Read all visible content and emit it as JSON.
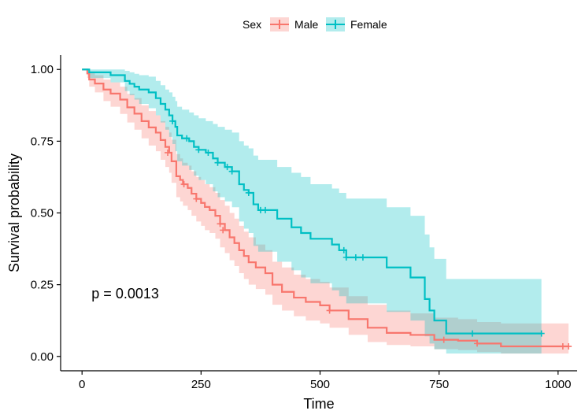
{
  "chart_data": {
    "type": "line",
    "xlabel": "Time",
    "ylabel": "Survival probability",
    "xlim": [
      -45,
      1040
    ],
    "ylim": [
      -0.05,
      1.05
    ],
    "x_ticks": [
      0,
      250,
      500,
      750,
      1000
    ],
    "x_tick_labels": [
      "0",
      "250",
      "500",
      "750",
      "1000"
    ],
    "y_ticks": [
      0.0,
      0.25,
      0.5,
      0.75,
      1.0
    ],
    "y_tick_labels": [
      "0.00",
      "0.25",
      "0.50",
      "0.75",
      "1.00"
    ],
    "grid": false,
    "legend": {
      "title": "Sex",
      "position": "top"
    },
    "annotation": {
      "text": "p = 0.0013",
      "x": 20,
      "y": 0.2
    },
    "series": [
      {
        "name": "Male",
        "color": "#F8766D",
        "steps": [
          [
            0,
            1.0
          ],
          [
            11,
            0.986
          ],
          [
            15,
            0.965
          ],
          [
            27,
            0.951
          ],
          [
            45,
            0.93
          ],
          [
            60,
            0.916
          ],
          [
            80,
            0.895
          ],
          [
            95,
            0.868
          ],
          [
            110,
            0.846
          ],
          [
            125,
            0.82
          ],
          [
            140,
            0.798
          ],
          [
            155,
            0.78
          ],
          [
            165,
            0.754
          ],
          [
            175,
            0.73
          ],
          [
            183,
            0.71
          ],
          [
            188,
            0.68
          ],
          [
            198,
            0.628
          ],
          [
            206,
            0.615
          ],
          [
            212,
            0.6
          ],
          [
            222,
            0.587
          ],
          [
            230,
            0.567
          ],
          [
            240,
            0.549
          ],
          [
            250,
            0.535
          ],
          [
            258,
            0.521
          ],
          [
            268,
            0.51
          ],
          [
            280,
            0.49
          ],
          [
            290,
            0.462
          ],
          [
            300,
            0.44
          ],
          [
            310,
            0.415
          ],
          [
            320,
            0.395
          ],
          [
            330,
            0.37
          ],
          [
            340,
            0.35
          ],
          [
            350,
            0.328
          ],
          [
            365,
            0.31
          ],
          [
            385,
            0.29
          ],
          [
            400,
            0.25
          ],
          [
            420,
            0.225
          ],
          [
            445,
            0.205
          ],
          [
            470,
            0.19
          ],
          [
            500,
            0.178
          ],
          [
            520,
            0.16
          ],
          [
            560,
            0.13
          ],
          [
            600,
            0.1
          ],
          [
            640,
            0.082
          ],
          [
            690,
            0.075
          ],
          [
            740,
            0.058
          ],
          [
            790,
            0.055
          ],
          [
            830,
            0.045
          ],
          [
            880,
            0.035
          ],
          [
            1022,
            0.035
          ]
        ],
        "lower": [
          [
            0,
            1.0
          ],
          [
            11,
            0.97
          ],
          [
            15,
            0.94
          ],
          [
            27,
            0.92
          ],
          [
            45,
            0.89
          ],
          [
            60,
            0.87
          ],
          [
            80,
            0.845
          ],
          [
            95,
            0.815
          ],
          [
            110,
            0.79
          ],
          [
            125,
            0.76
          ],
          [
            140,
            0.735
          ],
          [
            155,
            0.715
          ],
          [
            165,
            0.685
          ],
          [
            175,
            0.66
          ],
          [
            183,
            0.64
          ],
          [
            188,
            0.605
          ],
          [
            198,
            0.555
          ],
          [
            206,
            0.54
          ],
          [
            212,
            0.525
          ],
          [
            222,
            0.51
          ],
          [
            230,
            0.49
          ],
          [
            240,
            0.47
          ],
          [
            250,
            0.455
          ],
          [
            258,
            0.44
          ],
          [
            268,
            0.43
          ],
          [
            280,
            0.41
          ],
          [
            290,
            0.38
          ],
          [
            300,
            0.36
          ],
          [
            310,
            0.335
          ],
          [
            320,
            0.315
          ],
          [
            330,
            0.29
          ],
          [
            340,
            0.27
          ],
          [
            350,
            0.25
          ],
          [
            365,
            0.235
          ],
          [
            385,
            0.215
          ],
          [
            400,
            0.18
          ],
          [
            420,
            0.16
          ],
          [
            445,
            0.14
          ],
          [
            470,
            0.125
          ],
          [
            500,
            0.115
          ],
          [
            520,
            0.1
          ],
          [
            560,
            0.075
          ],
          [
            600,
            0.05
          ],
          [
            640,
            0.04
          ],
          [
            690,
            0.035
          ],
          [
            740,
            0.025
          ],
          [
            790,
            0.022
          ],
          [
            830,
            0.015
          ],
          [
            880,
            0.01
          ],
          [
            1022,
            0.01
          ]
        ],
        "upper": [
          [
            0,
            1.0
          ],
          [
            11,
            1.0
          ],
          [
            15,
            0.99
          ],
          [
            27,
            0.98
          ],
          [
            45,
            0.965
          ],
          [
            60,
            0.955
          ],
          [
            80,
            0.94
          ],
          [
            95,
            0.915
          ],
          [
            110,
            0.9
          ],
          [
            125,
            0.875
          ],
          [
            140,
            0.855
          ],
          [
            155,
            0.84
          ],
          [
            165,
            0.82
          ],
          [
            175,
            0.8
          ],
          [
            183,
            0.78
          ],
          [
            188,
            0.755
          ],
          [
            198,
            0.705
          ],
          [
            206,
            0.69
          ],
          [
            212,
            0.675
          ],
          [
            222,
            0.665
          ],
          [
            230,
            0.645
          ],
          [
            240,
            0.625
          ],
          [
            250,
            0.615
          ],
          [
            258,
            0.6
          ],
          [
            268,
            0.59
          ],
          [
            280,
            0.57
          ],
          [
            290,
            0.545
          ],
          [
            300,
            0.525
          ],
          [
            310,
            0.5
          ],
          [
            320,
            0.48
          ],
          [
            330,
            0.455
          ],
          [
            340,
            0.435
          ],
          [
            350,
            0.415
          ],
          [
            365,
            0.39
          ],
          [
            385,
            0.37
          ],
          [
            400,
            0.33
          ],
          [
            420,
            0.31
          ],
          [
            445,
            0.285
          ],
          [
            470,
            0.27
          ],
          [
            500,
            0.26
          ],
          [
            520,
            0.24
          ],
          [
            560,
            0.21
          ],
          [
            600,
            0.18
          ],
          [
            640,
            0.16
          ],
          [
            690,
            0.15
          ],
          [
            740,
            0.135
          ],
          [
            790,
            0.13
          ],
          [
            830,
            0.12
          ],
          [
            880,
            0.115
          ],
          [
            1022,
            0.115
          ]
        ],
        "censored": [
          [
            180,
            0.71
          ],
          [
            214,
            0.6
          ],
          [
            240,
            0.549
          ],
          [
            290,
            0.462
          ],
          [
            296,
            0.44
          ],
          [
            520,
            0.16
          ],
          [
            760,
            0.058
          ],
          [
            830,
            0.045
          ],
          [
            1010,
            0.035
          ],
          [
            1022,
            0.035
          ]
        ]
      },
      {
        "name": "Female",
        "color": "#00BFC4",
        "steps": [
          [
            0,
            1.0
          ],
          [
            15,
            0.99
          ],
          [
            60,
            0.98
          ],
          [
            90,
            0.96
          ],
          [
            100,
            0.95
          ],
          [
            110,
            0.94
          ],
          [
            120,
            0.93
          ],
          [
            140,
            0.92
          ],
          [
            155,
            0.9
          ],
          [
            165,
            0.88
          ],
          [
            175,
            0.86
          ],
          [
            183,
            0.84
          ],
          [
            190,
            0.82
          ],
          [
            196,
            0.8
          ],
          [
            200,
            0.77
          ],
          [
            210,
            0.76
          ],
          [
            225,
            0.75
          ],
          [
            235,
            0.73
          ],
          [
            245,
            0.72
          ],
          [
            260,
            0.71
          ],
          [
            275,
            0.69
          ],
          [
            285,
            0.675
          ],
          [
            300,
            0.66
          ],
          [
            315,
            0.645
          ],
          [
            330,
            0.6
          ],
          [
            340,
            0.58
          ],
          [
            350,
            0.57
          ],
          [
            360,
            0.53
          ],
          [
            370,
            0.51
          ],
          [
            410,
            0.48
          ],
          [
            440,
            0.45
          ],
          [
            460,
            0.43
          ],
          [
            480,
            0.41
          ],
          [
            525,
            0.39
          ],
          [
            540,
            0.37
          ],
          [
            555,
            0.345
          ],
          [
            640,
            0.31
          ],
          [
            690,
            0.275
          ],
          [
            720,
            0.2
          ],
          [
            730,
            0.16
          ],
          [
            740,
            0.125
          ],
          [
            765,
            0.08
          ],
          [
            965,
            0.08
          ]
        ],
        "lower": [
          [
            0,
            1.0
          ],
          [
            15,
            0.97
          ],
          [
            60,
            0.955
          ],
          [
            90,
            0.925
          ],
          [
            100,
            0.91
          ],
          [
            110,
            0.895
          ],
          [
            120,
            0.88
          ],
          [
            140,
            0.865
          ],
          [
            155,
            0.84
          ],
          [
            165,
            0.815
          ],
          [
            175,
            0.79
          ],
          [
            183,
            0.765
          ],
          [
            190,
            0.74
          ],
          [
            196,
            0.715
          ],
          [
            200,
            0.68
          ],
          [
            210,
            0.665
          ],
          [
            225,
            0.65
          ],
          [
            235,
            0.63
          ],
          [
            245,
            0.615
          ],
          [
            260,
            0.6
          ],
          [
            275,
            0.575
          ],
          [
            285,
            0.555
          ],
          [
            300,
            0.54
          ],
          [
            315,
            0.52
          ],
          [
            330,
            0.47
          ],
          [
            340,
            0.445
          ],
          [
            350,
            0.43
          ],
          [
            360,
            0.385
          ],
          [
            370,
            0.365
          ],
          [
            410,
            0.33
          ],
          [
            440,
            0.3
          ],
          [
            460,
            0.275
          ],
          [
            480,
            0.255
          ],
          [
            525,
            0.23
          ],
          [
            540,
            0.21
          ],
          [
            555,
            0.185
          ],
          [
            640,
            0.155
          ],
          [
            690,
            0.125
          ],
          [
            720,
            0.07
          ],
          [
            730,
            0.045
          ],
          [
            740,
            0.025
          ],
          [
            765,
            0.01
          ],
          [
            965,
            0.01
          ]
        ],
        "upper": [
          [
            0,
            1.0
          ],
          [
            15,
            1.0
          ],
          [
            60,
            1.0
          ],
          [
            90,
            0.995
          ],
          [
            100,
            0.99
          ],
          [
            110,
            0.985
          ],
          [
            120,
            0.98
          ],
          [
            140,
            0.975
          ],
          [
            155,
            0.96
          ],
          [
            165,
            0.945
          ],
          [
            175,
            0.93
          ],
          [
            183,
            0.92
          ],
          [
            190,
            0.905
          ],
          [
            196,
            0.89
          ],
          [
            200,
            0.87
          ],
          [
            210,
            0.86
          ],
          [
            225,
            0.85
          ],
          [
            235,
            0.84
          ],
          [
            245,
            0.83
          ],
          [
            260,
            0.82
          ],
          [
            275,
            0.81
          ],
          [
            285,
            0.8
          ],
          [
            300,
            0.79
          ],
          [
            315,
            0.78
          ],
          [
            330,
            0.75
          ],
          [
            340,
            0.735
          ],
          [
            350,
            0.725
          ],
          [
            360,
            0.7
          ],
          [
            370,
            0.685
          ],
          [
            410,
            0.66
          ],
          [
            440,
            0.64
          ],
          [
            460,
            0.625
          ],
          [
            480,
            0.6
          ],
          [
            525,
            0.585
          ],
          [
            540,
            0.57
          ],
          [
            555,
            0.55
          ],
          [
            640,
            0.52
          ],
          [
            690,
            0.49
          ],
          [
            720,
            0.425
          ],
          [
            730,
            0.38
          ],
          [
            740,
            0.34
          ],
          [
            765,
            0.27
          ],
          [
            965,
            0.27
          ]
        ],
        "censored": [
          [
            190,
            0.82
          ],
          [
            220,
            0.76
          ],
          [
            245,
            0.72
          ],
          [
            265,
            0.71
          ],
          [
            285,
            0.675
          ],
          [
            305,
            0.66
          ],
          [
            315,
            0.645
          ],
          [
            350,
            0.57
          ],
          [
            375,
            0.51
          ],
          [
            385,
            0.51
          ],
          [
            550,
            0.37
          ],
          [
            555,
            0.345
          ],
          [
            575,
            0.345
          ],
          [
            590,
            0.345
          ],
          [
            820,
            0.08
          ],
          [
            965,
            0.08
          ]
        ]
      }
    ]
  }
}
